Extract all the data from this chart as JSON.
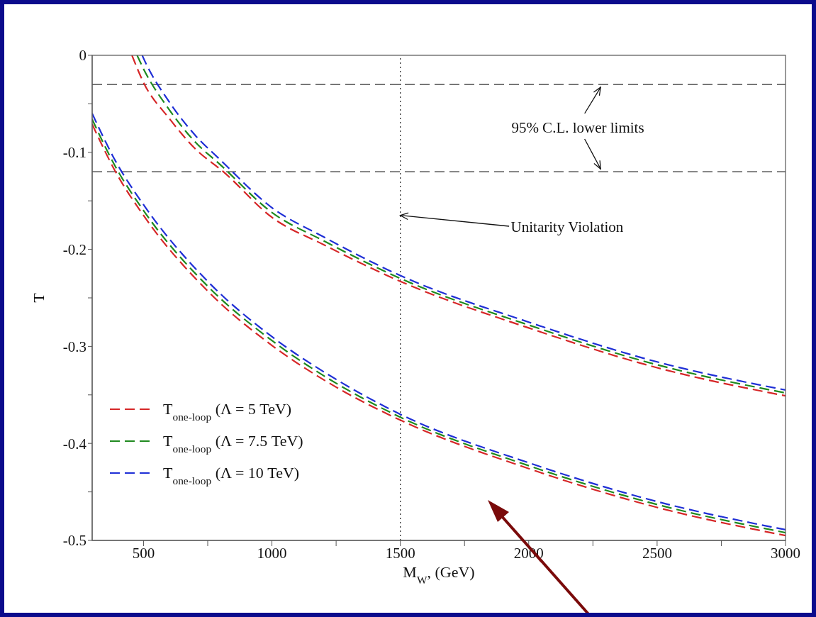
{
  "chart_data": {
    "type": "line",
    "xlabel": "M$_{W}$, (GeV)",
    "ylabel": "T",
    "xlim": [
      300,
      3000
    ],
    "ylim": [
      -0.5,
      0
    ],
    "xticks": [
      500,
      {
        "value": 750,
        "label": null
      },
      1000,
      {
        "value": 1250,
        "label": null
      },
      1500,
      {
        "value": 1750,
        "label": null
      },
      2000,
      {
        "value": 2250,
        "label": null
      },
      2500,
      {
        "value": 2750,
        "label": null
      },
      3000
    ],
    "yticks": [
      0,
      {
        "value": -0.05,
        "label": null
      },
      -0.1,
      {
        "value": -0.15,
        "label": null
      },
      -0.2,
      {
        "value": -0.25,
        "label": null
      },
      -0.3,
      {
        "value": -0.35,
        "label": null
      },
      -0.4,
      {
        "value": -0.45,
        "label": null
      },
      -0.5
    ],
    "legend": "bottom left",
    "marker": "none",
    "series": [
      {
        "name": "T$_{one-loop}$ (Λ = 5 TeV)",
        "color": "#d62728",
        "line_style": "dashed",
        "x": [
          300,
          391,
          500,
          750,
          1000,
          1250,
          1500,
          2000,
          2500,
          3000
        ],
        "values": [
          -0.071,
          -0.12,
          -0.165,
          -0.243,
          -0.299,
          -0.342,
          -0.376,
          -0.426,
          -0.466,
          -0.495
        ]
      },
      {
        "name": "T$_{one-loop}$ (Λ = 7.5 TeV)",
        "color": "#1f8a1f",
        "line_style": "dashed",
        "x": [
          300,
          391,
          500,
          750,
          1000,
          1250,
          1500,
          2000,
          2500,
          3000
        ],
        "values": [
          -0.066,
          -0.115,
          -0.16,
          -0.238,
          -0.294,
          -0.338,
          -0.373,
          -0.423,
          -0.463,
          -0.492
        ]
      },
      {
        "name": "T$_{one-loop}$ (Λ = 10 TeV)",
        "color": "#1f2fd6",
        "line_style": "dashed",
        "x": [
          300,
          391,
          500,
          750,
          1000,
          1250,
          1500,
          2000,
          2500,
          3000
        ],
        "values": [
          -0.06,
          -0.109,
          -0.154,
          -0.233,
          -0.29,
          -0.334,
          -0.37,
          -0.42,
          -0.46,
          -0.489
        ]
      },
      {
        "color": "#d62728",
        "line_style": "dashed",
        "x": [
          455,
          500,
          600,
          700,
          811,
          1000,
          1200,
          1500,
          2000,
          2500,
          3000
        ],
        "values": [
          0,
          -0.028,
          -0.065,
          -0.096,
          -0.12,
          -0.167,
          -0.195,
          -0.233,
          -0.281,
          -0.322,
          -0.351
        ]
      },
      {
        "color": "#1f8a1f",
        "line_style": "dashed",
        "x": [
          475,
          500,
          600,
          700,
          800,
          1000,
          1200,
          1500,
          2000,
          2500,
          3000
        ],
        "values": [
          0,
          -0.014,
          -0.056,
          -0.089,
          -0.113,
          -0.162,
          -0.191,
          -0.23,
          -0.278,
          -0.319,
          -0.348
        ]
      },
      {
        "color": "#1f2fd6",
        "line_style": "dashed",
        "x": [
          495,
          500,
          600,
          700,
          800,
          1000,
          1200,
          1500,
          2000,
          2500,
          3000
        ],
        "values": [
          0,
          -0.003,
          -0.048,
          -0.082,
          -0.108,
          -0.157,
          -0.187,
          -0.227,
          -0.275,
          -0.316,
          -0.345
        ]
      }
    ],
    "ref_lines": [
      {
        "axis": "y",
        "value": -0.03,
        "line_style": "dashed",
        "color": "#333333"
      },
      {
        "axis": "y",
        "value": -0.12,
        "line_style": "dashed",
        "color": "#333333"
      },
      {
        "axis": "x",
        "value": 1500,
        "line_style": "dotted",
        "color": "#333333"
      }
    ],
    "annotations": [
      {
        "text": "95% C.L. lower limits",
        "x": 2280,
        "y": -0.12
      },
      {
        "text": "Unitarity Violation",
        "x": 1500,
        "y": -0.165
      }
    ]
  }
}
